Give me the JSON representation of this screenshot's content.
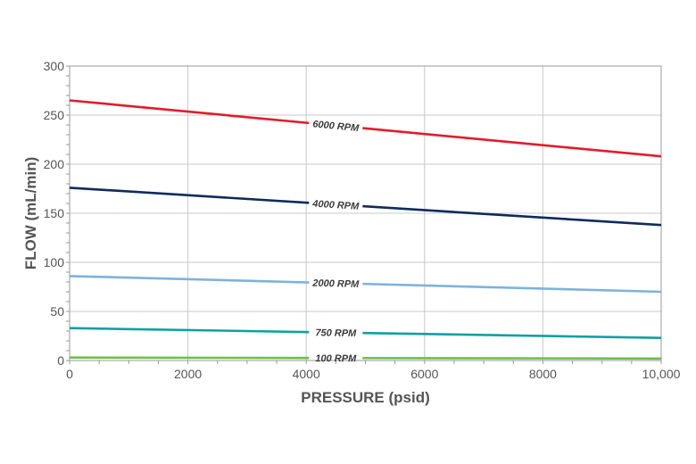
{
  "chart_data": {
    "type": "line",
    "xlabel": "PRESSURE (psid)",
    "ylabel": "FLOW (mL/min)",
    "xlim": [
      0,
      10000
    ],
    "ylim": [
      0,
      300
    ],
    "x_ticks": [
      0,
      2000,
      4000,
      6000,
      8000,
      10000
    ],
    "x_tick_labels": [
      "0",
      "2000",
      "4000",
      "6000",
      "8000",
      "10,000"
    ],
    "y_ticks": [
      0,
      50,
      100,
      150,
      200,
      250,
      300
    ],
    "y_tick_labels": [
      "0",
      "50",
      "100",
      "150",
      "200",
      "250",
      "300"
    ],
    "grid": true,
    "legend": "inline labels on lines",
    "series": [
      {
        "name": "6000 RPM",
        "color": "#e31b2d",
        "x": [
          0,
          10000
        ],
        "y": [
          265,
          208
        ]
      },
      {
        "name": "4000 RPM",
        "color": "#0e2b5c",
        "x": [
          0,
          10000
        ],
        "y": [
          176,
          138
        ]
      },
      {
        "name": "2000 RPM",
        "color": "#7fb2dc",
        "x": [
          0,
          10000
        ],
        "y": [
          86,
          70
        ]
      },
      {
        "name": "750 RPM",
        "color": "#10a0a3",
        "x": [
          0,
          10000
        ],
        "y": [
          33,
          23
        ]
      },
      {
        "name": "100 RPM",
        "color": "#6cc04a",
        "x": [
          0,
          10000
        ],
        "y": [
          3,
          2
        ]
      }
    ]
  }
}
